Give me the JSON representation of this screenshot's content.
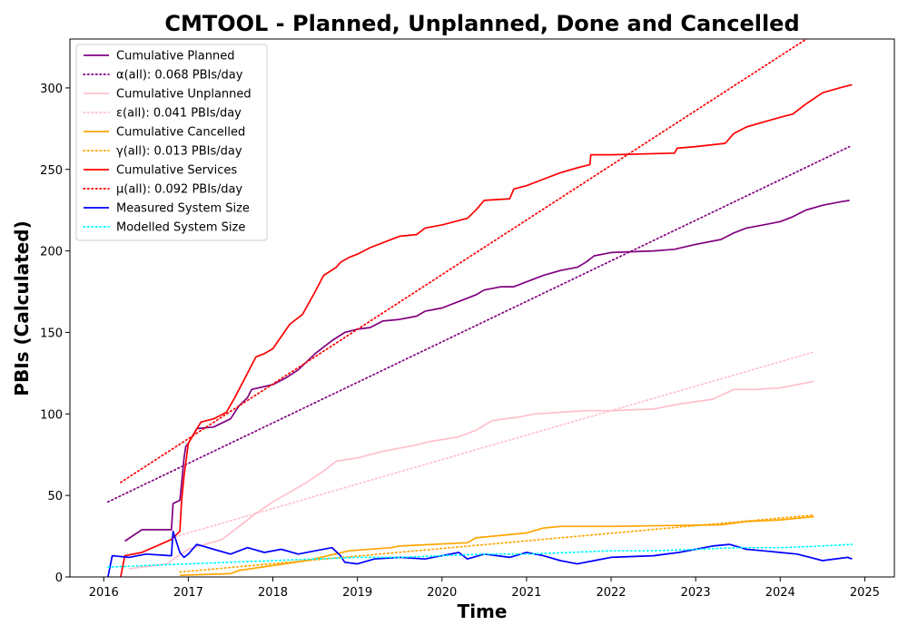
{
  "chart_data": {
    "type": "line",
    "title": "CMTOOL - Planned, Unplanned, Done  and Cancelled",
    "xlabel": "Time",
    "ylabel": "PBIs (Calculated)",
    "xlim": [
      2015.6,
      2025.35
    ],
    "ylim": [
      0,
      330
    ],
    "x_ticks": [
      2016,
      2017,
      2018,
      2019,
      2020,
      2021,
      2022,
      2023,
      2024,
      2025
    ],
    "y_ticks": [
      0,
      50,
      100,
      150,
      200,
      250,
      300
    ],
    "legend_position": "top-left",
    "grid": false,
    "series": [
      {
        "name": "Cumulative Planned",
        "style": "solid",
        "color": "#800080",
        "x": [
          2016.25,
          2016.45,
          2016.8,
          2016.82,
          2016.9,
          2016.92,
          2016.95,
          2016.97,
          2017.0,
          2017.1,
          2017.3,
          2017.5,
          2017.6,
          2017.7,
          2017.75,
          2018.0,
          2018.15,
          2018.3,
          2018.5,
          2018.7,
          2018.85,
          2019.0,
          2019.15,
          2019.3,
          2019.5,
          2019.7,
          2019.8,
          2020.0,
          2020.2,
          2020.4,
          2020.5,
          2020.7,
          2020.85,
          2021.0,
          2021.2,
          2021.4,
          2021.6,
          2021.7,
          2021.8,
          2022.0,
          2022.5,
          2022.75,
          2023.0,
          2023.3,
          2023.45,
          2023.6,
          2023.8,
          2024.0,
          2024.15,
          2024.3,
          2024.5,
          2024.7,
          2024.82
        ],
        "y": [
          22,
          29,
          29,
          45,
          47,
          57,
          73,
          80,
          82,
          91,
          92,
          97,
          105,
          110,
          115,
          118,
          122,
          127,
          137,
          145,
          150,
          152,
          153,
          157,
          158,
          160,
          163,
          165,
          169,
          173,
          176,
          178,
          178,
          181,
          185,
          188,
          190,
          193,
          197,
          199,
          200,
          201,
          204,
          207,
          211,
          214,
          216,
          218,
          221,
          225,
          228,
          230,
          231
        ]
      },
      {
        "name": "α(all): 0.068 PBIs/day",
        "style": "dotted",
        "color": "#800080",
        "x": [
          2016.05,
          2024.82
        ],
        "y": [
          46,
          264
        ]
      },
      {
        "name": "Cumulative Unplanned",
        "style": "solid",
        "color": "#ffc0cb",
        "x": [
          2016.3,
          2016.75,
          2016.85,
          2017.0,
          2017.4,
          2017.6,
          2017.8,
          2018.0,
          2018.2,
          2018.4,
          2018.6,
          2018.75,
          2019.0,
          2019.15,
          2019.3,
          2019.5,
          2019.7,
          2019.85,
          2020.2,
          2020.4,
          2020.6,
          2020.9,
          2021.1,
          2021.4,
          2021.7,
          2022.0,
          2022.5,
          2022.8,
          2023.2,
          2023.45,
          2023.7,
          2024.0,
          2024.2,
          2024.3,
          2024.4
        ],
        "y": [
          5,
          8,
          12,
          17,
          23,
          31,
          39,
          46,
          52,
          58,
          65,
          71,
          73,
          75,
          77,
          79,
          81,
          83,
          86,
          90,
          96,
          98,
          100,
          101,
          102,
          102,
          103,
          106,
          109,
          115,
          115,
          116,
          118,
          119,
          120
        ]
      },
      {
        "name": "ε(all): 0.041 PBIs/day",
        "style": "dotted",
        "color": "#ffc0cb",
        "x": [
          2016.8,
          2024.4
        ],
        "y": [
          24,
          138
        ]
      },
      {
        "name": "Cumulative Cancelled",
        "style": "solid",
        "color": "#ffa500",
        "x": [
          2016.9,
          2017.5,
          2017.6,
          2018.0,
          2018.4,
          2018.9,
          2019.4,
          2019.5,
          2020.3,
          2020.4,
          2020.6,
          2021.0,
          2021.2,
          2021.4,
          2022.0,
          2023.3,
          2023.6,
          2024.0,
          2024.4
        ],
        "y": [
          1,
          2,
          4,
          7,
          10,
          16,
          18,
          19,
          21,
          24,
          25,
          27,
          30,
          31,
          31,
          32,
          34,
          35,
          37
        ]
      },
      {
        "name": "γ(all): 0.013 PBIs/day",
        "style": "dotted",
        "color": "#ffa500",
        "x": [
          2016.9,
          2024.4
        ],
        "y": [
          3,
          38
        ]
      },
      {
        "name": "Cumulative Services",
        "style": "solid",
        "color": "#ff0000",
        "x": [
          2016.2,
          2016.25,
          2016.45,
          2016.8,
          2016.9,
          2016.92,
          2016.95,
          2017.0,
          2017.15,
          2017.3,
          2017.45,
          2017.55,
          2017.7,
          2017.8,
          2017.9,
          2018.0,
          2018.2,
          2018.35,
          2018.5,
          2018.6,
          2018.75,
          2018.8,
          2018.9,
          2019.0,
          2019.15,
          2019.3,
          2019.5,
          2019.7,
          2019.8,
          2020.0,
          2020.3,
          2020.4,
          2020.5,
          2020.8,
          2020.85,
          2021.0,
          2021.2,
          2021.4,
          2021.6,
          2021.75,
          2021.76,
          2022.0,
          2022.75,
          2022.78,
          2023.0,
          2023.35,
          2023.45,
          2023.6,
          2023.8,
          2024.0,
          2024.15,
          2024.3,
          2024.5,
          2024.7,
          2024.85
        ],
        "y": [
          0,
          13,
          15,
          23,
          28,
          46,
          62,
          82,
          95,
          97,
          101,
          110,
          125,
          135,
          137,
          140,
          155,
          161,
          175,
          185,
          190,
          193,
          196,
          198,
          202,
          205,
          209,
          210,
          214,
          216,
          220,
          225,
          231,
          232,
          238,
          240,
          244,
          248,
          251,
          253,
          259,
          259,
          260,
          263,
          264,
          266,
          272,
          276,
          279,
          282,
          284,
          290,
          297,
          300,
          302
        ]
      },
      {
        "name": "μ(all): 0.092 PBIs/day",
        "style": "dotted",
        "color": "#ff0000",
        "x": [
          2016.2,
          2024.4
        ],
        "y": [
          58,
          333
        ]
      },
      {
        "name": "Measured System Size",
        "style": "solid",
        "color": "#0000ff",
        "x": [
          2016.05,
          2016.1,
          2016.3,
          2016.5,
          2016.8,
          2016.82,
          2016.9,
          2016.95,
          2017.0,
          2017.1,
          2017.3,
          2017.5,
          2017.7,
          2017.9,
          2018.1,
          2018.3,
          2018.5,
          2018.7,
          2018.8,
          2018.85,
          2019.0,
          2019.2,
          2019.5,
          2019.8,
          2020.0,
          2020.2,
          2020.3,
          2020.5,
          2020.8,
          2021.0,
          2021.2,
          2021.4,
          2021.6,
          2021.8,
          2022.0,
          2022.5,
          2022.8,
          2023.0,
          2023.2,
          2023.4,
          2023.6,
          2023.8,
          2024.0,
          2024.2,
          2024.5,
          2024.8,
          2024.85
        ],
        "y": [
          0,
          13,
          12,
          14,
          13,
          28,
          15,
          12,
          14,
          20,
          17,
          14,
          18,
          15,
          17,
          14,
          16,
          18,
          13,
          9,
          8,
          11,
          12,
          11,
          13,
          15,
          11,
          14,
          12,
          15,
          13,
          10,
          8,
          10,
          12,
          13,
          15,
          17,
          19,
          20,
          17,
          16,
          15,
          14,
          10,
          12,
          11
        ]
      },
      {
        "name": "Modelled System Size",
        "style": "dotted",
        "color": "#00ffff",
        "x": [
          2016.05,
          2016.5,
          2017.0,
          2017.5,
          2018.0,
          2018.5,
          2019.0,
          2019.5,
          2020.0,
          2020.5,
          2021.0,
          2021.5,
          2022.0,
          2022.5,
          2023.0,
          2023.5,
          2024.0,
          2024.5,
          2024.85
        ],
        "y": [
          6,
          7,
          8,
          9,
          10,
          11,
          12,
          12,
          13,
          14,
          14,
          15,
          16,
          16,
          17,
          18,
          18,
          19,
          20
        ]
      }
    ]
  }
}
